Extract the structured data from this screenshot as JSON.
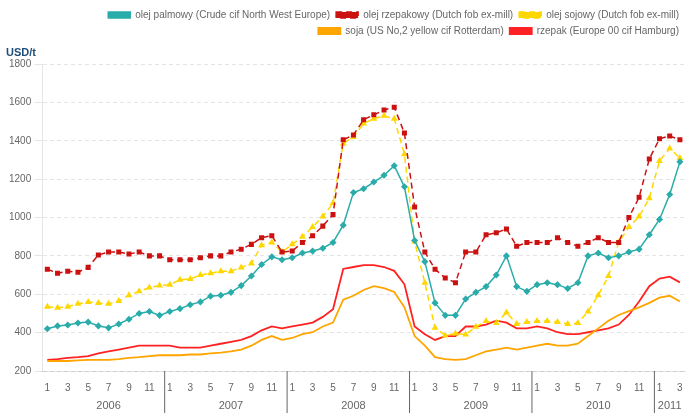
{
  "chart_data": {
    "type": "line",
    "y_label": "USD/t",
    "categories": [
      "1",
      null,
      "3",
      null,
      "5",
      null,
      "7",
      null,
      "9",
      null,
      "11",
      null,
      "1",
      null,
      "3",
      null,
      "5",
      null,
      "7",
      null,
      "9",
      null,
      "11",
      null,
      "1",
      null,
      "3",
      null,
      "5",
      null,
      "7",
      null,
      "9",
      null,
      "11",
      null,
      "1",
      null,
      "3",
      null,
      "5",
      null,
      "7",
      null,
      "9",
      null,
      "11",
      null,
      "1",
      null,
      "3",
      null,
      "5",
      null,
      "7",
      null,
      "9",
      null,
      "11",
      null,
      "1",
      null,
      "3"
    ],
    "annotations": [
      "2006",
      "2007",
      "2008",
      "2009",
      "2010",
      "2011"
    ],
    "ylim": [
      200,
      1800
    ],
    "yticks": [
      200,
      400,
      600,
      800,
      1000,
      1200,
      1400,
      1600,
      1800
    ],
    "grid": true,
    "legend": "upper right",
    "series": [
      {
        "name": "olej palmowy (Crude cif North West Europe)",
        "color": "#2AACAA",
        "marker": "diamond",
        "line_style": "solid",
        "values": [
          420,
          435,
          440,
          450,
          455,
          435,
          425,
          445,
          470,
          500,
          510,
          490,
          510,
          525,
          545,
          560,
          590,
          595,
          610,
          645,
          695,
          755,
          795,
          780,
          790,
          815,
          825,
          840,
          870,
          960,
          1130,
          1150,
          1185,
          1220,
          1270,
          1160,
          880,
          770,
          555,
          490,
          490,
          575,
          610,
          640,
          700,
          800,
          640,
          615,
          650,
          660,
          650,
          630,
          660,
          800,
          815,
          790,
          800,
          820,
          835,
          910,
          990,
          1120,
          1290
        ]
      },
      {
        "name": "olej rzepakowy (Dutch fob ex-mill)",
        "color": "#CC1111",
        "marker": "square",
        "line_style": "dashed",
        "values": [
          730,
          710,
          720,
          715,
          740,
          805,
          820,
          820,
          810,
          820,
          800,
          800,
          780,
          780,
          780,
          790,
          800,
          800,
          820,
          835,
          860,
          895,
          905,
          820,
          825,
          870,
          905,
          955,
          1015,
          1405,
          1430,
          1510,
          1535,
          1560,
          1575,
          1440,
          1055,
          820,
          730,
          685,
          660,
          820,
          820,
          910,
          920,
          940,
          850,
          870,
          870,
          870,
          895,
          870,
          850,
          870,
          895,
          870,
          870,
          1000,
          1105,
          1305,
          1410,
          1425,
          1405
        ]
      },
      {
        "name": "olej sojowy (Dutch fob ex-mill)",
        "color": "#FFD700",
        "marker": "triangle",
        "line_style": "dashed",
        "values": [
          535,
          530,
          535,
          550,
          560,
          555,
          550,
          565,
          595,
          615,
          635,
          645,
          650,
          675,
          680,
          700,
          710,
          720,
          720,
          740,
          760,
          855,
          870,
          820,
          860,
          900,
          950,
          1005,
          1075,
          1385,
          1420,
          1490,
          1515,
          1530,
          1515,
          1330,
          875,
          660,
          425,
          385,
          395,
          390,
          430,
          460,
          450,
          505,
          445,
          455,
          460,
          460,
          455,
          445,
          450,
          510,
          595,
          695,
          870,
          950,
          1005,
          1100,
          1295,
          1360,
          1310
        ]
      },
      {
        "name": "soja (US No,2 yellow cif Rotterdam)",
        "color": "#FFA500",
        "marker": "none",
        "line_style": "solid",
        "values": [
          252,
          252,
          252,
          255,
          258,
          258,
          258,
          262,
          268,
          272,
          278,
          282,
          282,
          282,
          286,
          286,
          292,
          296,
          302,
          312,
          332,
          362,
          382,
          362,
          372,
          392,
          402,
          432,
          452,
          572,
          592,
          622,
          642,
          632,
          612,
          532,
          382,
          332,
          272,
          262,
          258,
          262,
          282,
          302,
          312,
          322,
          312,
          322,
          332,
          342,
          332,
          332,
          342,
          382,
          422,
          462,
          492,
          512,
          532,
          555,
          582,
          592,
          562
        ]
      },
      {
        "name": "rzepak (Europe 00 cif Hamburg)",
        "color": "#FF2222",
        "marker": "none",
        "line_style": "solid",
        "values": [
          258,
          262,
          268,
          272,
          278,
          292,
          302,
          312,
          322,
          332,
          332,
          332,
          332,
          322,
          322,
          322,
          332,
          342,
          352,
          362,
          382,
          412,
          432,
          422,
          432,
          442,
          452,
          482,
          522,
          732,
          742,
          752,
          752,
          742,
          722,
          652,
          432,
          392,
          362,
          382,
          382,
          432,
          432,
          442,
          462,
          452,
          422,
          422,
          432,
          422,
          402,
          392,
          392,
          402,
          412,
          422,
          442,
          492,
          562,
          642,
          682,
          692,
          662
        ]
      }
    ]
  }
}
